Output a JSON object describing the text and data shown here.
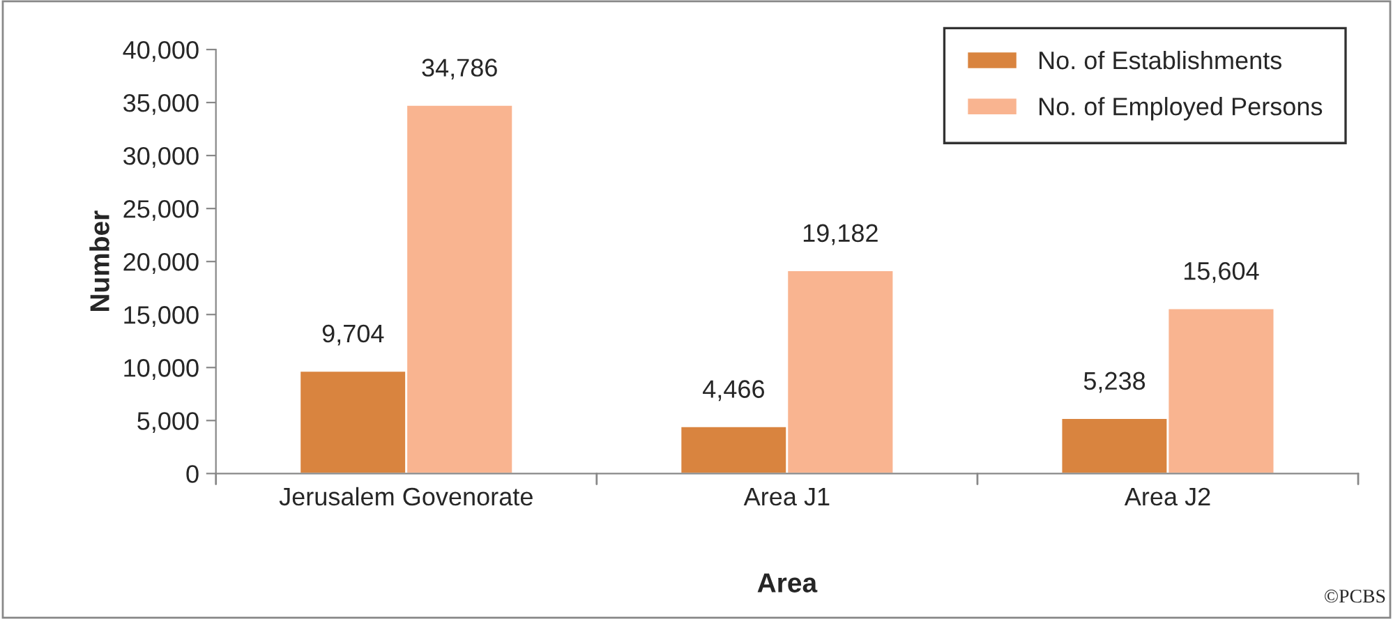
{
  "chart_data": {
    "type": "bar",
    "xlabel": "Area",
    "ylabel": "Number",
    "categories": [
      "Jerusalem Govenorate",
      "Area J1",
      "Area J2"
    ],
    "series": [
      {
        "name": "No. of Establishments",
        "color": "#d9843f",
        "values": [
          9704,
          4466,
          5238
        ],
        "value_labels": [
          "9,704",
          "4,466",
          "5,238"
        ]
      },
      {
        "name": "No. of Employed Persons",
        "color": "#f9b490",
        "values": [
          34786,
          19182,
          15604
        ],
        "value_labels": [
          "34,786",
          "19,182",
          "15,604"
        ]
      }
    ],
    "ylim": [
      0,
      40000
    ],
    "yticks": [
      {
        "value": 0,
        "label": "0"
      },
      {
        "value": 5000,
        "label": "5,000"
      },
      {
        "value": 10000,
        "label": "10,000"
      },
      {
        "value": 15000,
        "label": "15,000"
      },
      {
        "value": 20000,
        "label": "20,000"
      },
      {
        "value": 25000,
        "label": "25,000"
      },
      {
        "value": 30000,
        "label": "30,000"
      },
      {
        "value": 35000,
        "label": "35,000"
      },
      {
        "value": 40000,
        "label": "40,000"
      }
    ],
    "grid": false,
    "legend": "top right",
    "annotations": [
      "©PCBS"
    ]
  }
}
